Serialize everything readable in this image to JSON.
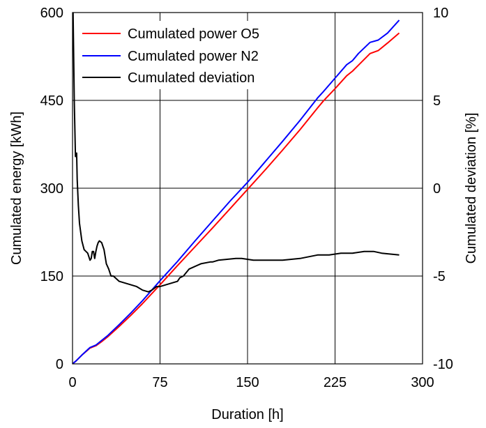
{
  "chart_data": {
    "type": "line",
    "xlabel": "Duration [h]",
    "ylabel": "Cumulated energy [kWh]",
    "y2label": "Cumulated deviation [%]",
    "xlim": [
      0,
      300
    ],
    "ylim": [
      0,
      600
    ],
    "y2lim": [
      -10,
      10
    ],
    "xticks": [
      0,
      75,
      150,
      225,
      300
    ],
    "yticks": [
      0,
      150,
      300,
      450,
      600
    ],
    "y2ticks": [
      -10,
      -5,
      0,
      5,
      10
    ],
    "grid": true,
    "legend_position": "top-left",
    "series": [
      {
        "name": "Cumulated power O5",
        "axis": "left",
        "color": "#ff0000",
        "x": [
          0,
          3,
          8,
          15,
          20,
          25,
          30,
          40,
          50,
          60,
          75,
          90,
          105,
          120,
          135,
          150,
          165,
          180,
          195,
          210,
          215,
          225,
          235,
          240,
          245,
          255,
          262,
          270,
          280
        ],
        "y": [
          0,
          5,
          15,
          27,
          31,
          38,
          46,
          64,
          83,
          103,
          135,
          168,
          200,
          232,
          265,
          298,
          331,
          365,
          400,
          437,
          449,
          470,
          492,
          500,
          510,
          530,
          535,
          548,
          565
        ]
      },
      {
        "name": "Cumulated power N2",
        "axis": "left",
        "color": "#0000ff",
        "x": [
          0,
          3,
          8,
          15,
          20,
          25,
          30,
          40,
          50,
          60,
          75,
          90,
          105,
          120,
          135,
          150,
          165,
          180,
          195,
          210,
          215,
          225,
          235,
          240,
          245,
          255,
          262,
          270,
          280
        ],
        "y": [
          0,
          5,
          15,
          28,
          32,
          40,
          48,
          67,
          87,
          108,
          142,
          175,
          210,
          244,
          278,
          310,
          345,
          380,
          416,
          454,
          465,
          488,
          511,
          518,
          530,
          549,
          553,
          565,
          587
        ]
      },
      {
        "name": "Cumulated deviation",
        "axis": "right",
        "color": "#000000",
        "x": [
          0.5,
          1.5,
          2.5,
          3.5,
          4,
          5,
          6,
          7,
          8,
          10,
          13,
          15,
          16,
          17,
          18,
          19,
          20,
          21,
          22,
          23,
          25,
          27,
          29,
          31,
          33,
          35,
          40,
          45,
          50,
          55,
          60,
          65,
          68,
          72,
          75,
          85,
          90,
          92,
          95,
          100,
          110,
          118,
          120,
          125,
          140,
          145,
          155,
          165,
          180,
          195,
          210,
          220,
          230,
          240,
          250,
          258,
          265,
          280
        ],
        "y": [
          10,
          5,
          1.8,
          2,
          0.5,
          -1,
          -2,
          -2.5,
          -3,
          -3.5,
          -3.7,
          -4.1,
          -4,
          -3.6,
          -3.6,
          -4,
          -3.6,
          -3.3,
          -3.1,
          -3,
          -3.1,
          -3.5,
          -4.3,
          -4.6,
          -5,
          -5,
          -5.3,
          -5.4,
          -5.5,
          -5.6,
          -5.8,
          -5.9,
          -5.8,
          -5.6,
          -5.6,
          -5.4,
          -5.3,
          -5.1,
          -5,
          -4.6,
          -4.3,
          -4.2,
          -4.2,
          -4.1,
          -4,
          -4,
          -4.1,
          -4.1,
          -4.1,
          -4,
          -3.8,
          -3.8,
          -3.7,
          -3.7,
          -3.6,
          -3.6,
          -3.7,
          -3.8
        ]
      }
    ]
  }
}
